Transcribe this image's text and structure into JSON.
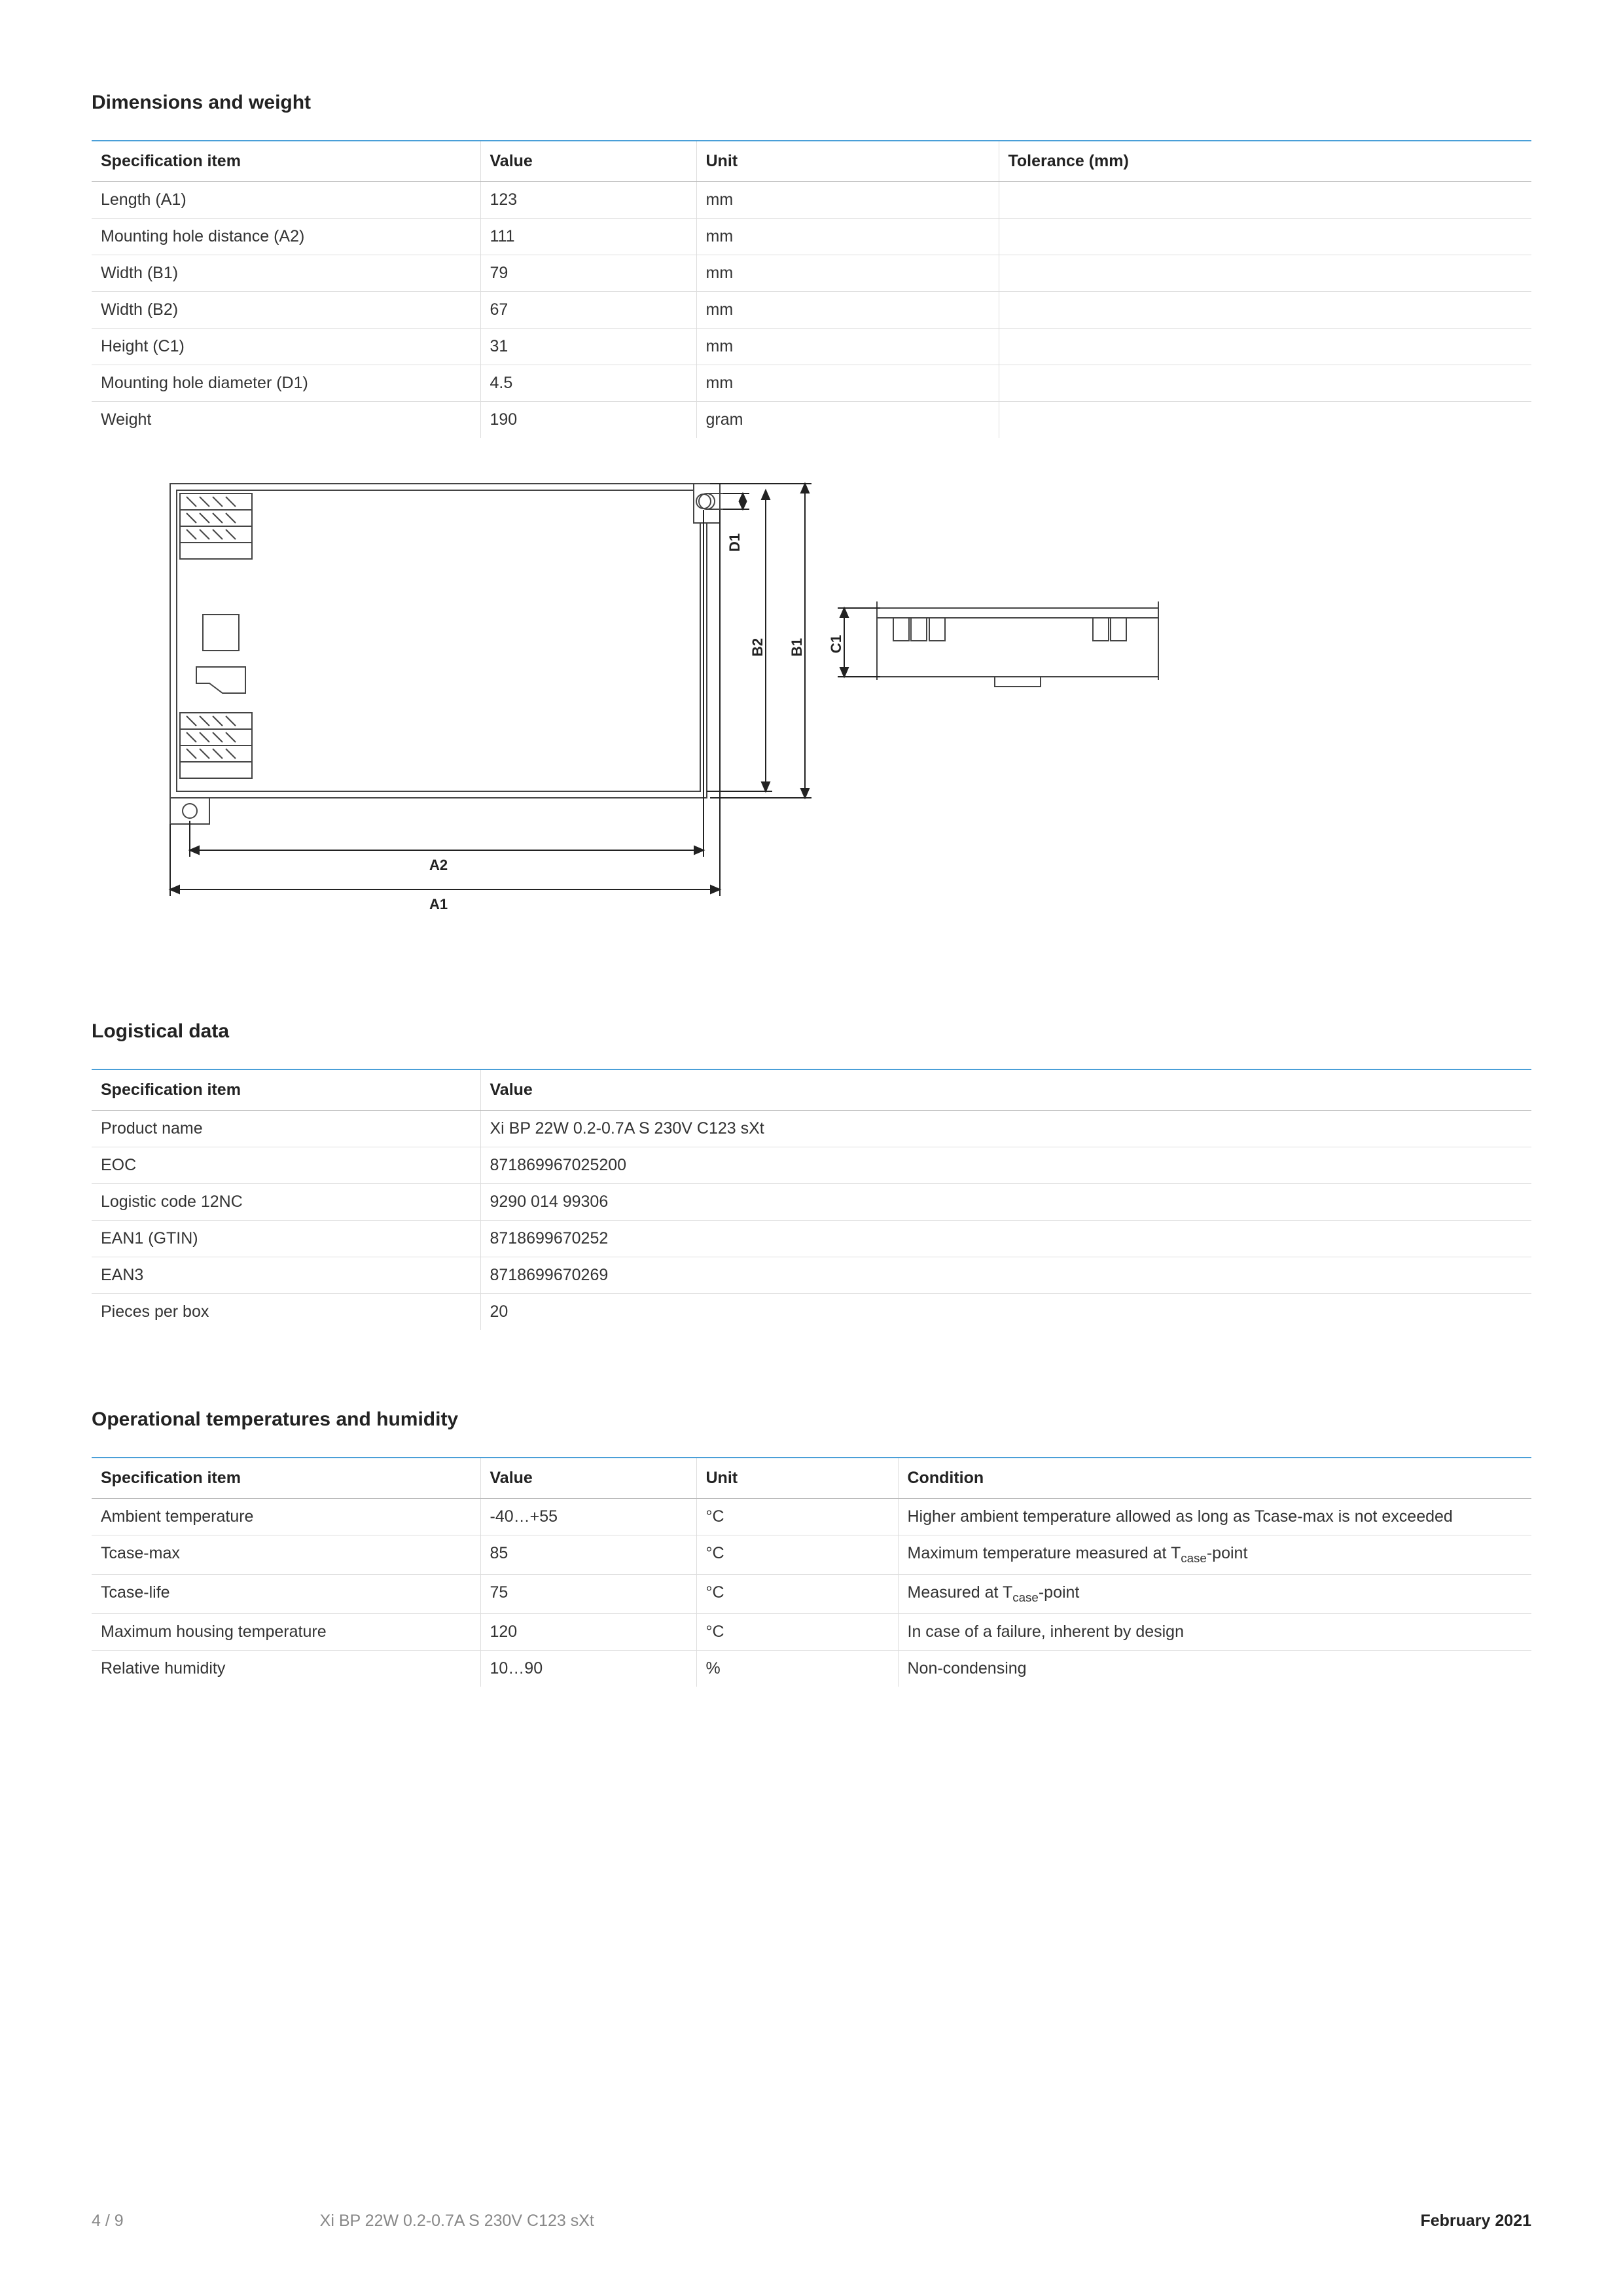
{
  "sections": {
    "dimensions": {
      "title": "Dimensions and weight",
      "columns": [
        "Specification item",
        "Value",
        "Unit",
        "Tolerance (mm)"
      ],
      "col_widths": [
        "27%",
        "15%",
        "21%",
        "37%"
      ],
      "rows": [
        [
          "Length (A1)",
          "123",
          "mm",
          ""
        ],
        [
          "Mounting hole distance (A2)",
          "111",
          "mm",
          ""
        ],
        [
          "Width (B1)",
          "79",
          "mm",
          ""
        ],
        [
          "Width (B2)",
          "67",
          "mm",
          ""
        ],
        [
          "Height (C1)",
          "31",
          "mm",
          ""
        ],
        [
          "Mounting hole diameter (D1)",
          "4.5",
          "mm",
          ""
        ],
        [
          "Weight",
          "190",
          "gram",
          ""
        ]
      ]
    },
    "logistical": {
      "title": "Logistical data",
      "columns": [
        "Specification item",
        "Value"
      ],
      "col_widths": [
        "27%",
        "73%"
      ],
      "rows": [
        [
          "Product name",
          "Xi BP 22W 0.2-0.7A S 230V C123 sXt"
        ],
        [
          "EOC",
          "871869967025200"
        ],
        [
          "Logistic code 12NC",
          "9290 014 99306"
        ],
        [
          "EAN1 (GTIN)",
          "8718699670252"
        ],
        [
          "EAN3",
          "8718699670269"
        ],
        [
          "Pieces per box",
          "20"
        ]
      ]
    },
    "operational": {
      "title": "Operational temperatures and humidity",
      "columns": [
        "Specification item",
        "Value",
        "Unit",
        "Condition"
      ],
      "col_widths": [
        "27%",
        "15%",
        "14%",
        "44%"
      ],
      "rows": [
        [
          "Ambient temperature",
          "-40…+55",
          "°C",
          "Higher ambient temperature allowed as long as Tcase-max is not exceeded"
        ],
        [
          "Tcase-max",
          "85",
          "°C",
          "Maximum temperature measured at T<sub>case</sub>-point"
        ],
        [
          "Tcase-life",
          "75",
          "°C",
          "Measured at T<sub>case</sub>-point"
        ],
        [
          "Maximum housing temperature",
          "120",
          "°C",
          "In case of a failure, inherent by design"
        ],
        [
          "Relative humidity",
          "10…90",
          "%",
          "Non-condensing"
        ]
      ]
    }
  },
  "diagram": {
    "labels": {
      "A1": "A1",
      "A2": "A2",
      "B1": "B1",
      "B2": "B2",
      "C1": "C1",
      "D1": "D1"
    },
    "stroke": "#444",
    "fill": "#fff",
    "hatch": "#888",
    "label_fontsize": 22,
    "label_weight": "700"
  },
  "footer": {
    "page": "4 / 9",
    "product": "Xi BP 22W 0.2-0.7A S 230V C123 sXt",
    "date": "February 2021"
  },
  "colors": {
    "accent_border": "#4a9fd8",
    "row_border": "#dddddd",
    "text": "#222222",
    "muted": "#888888"
  }
}
